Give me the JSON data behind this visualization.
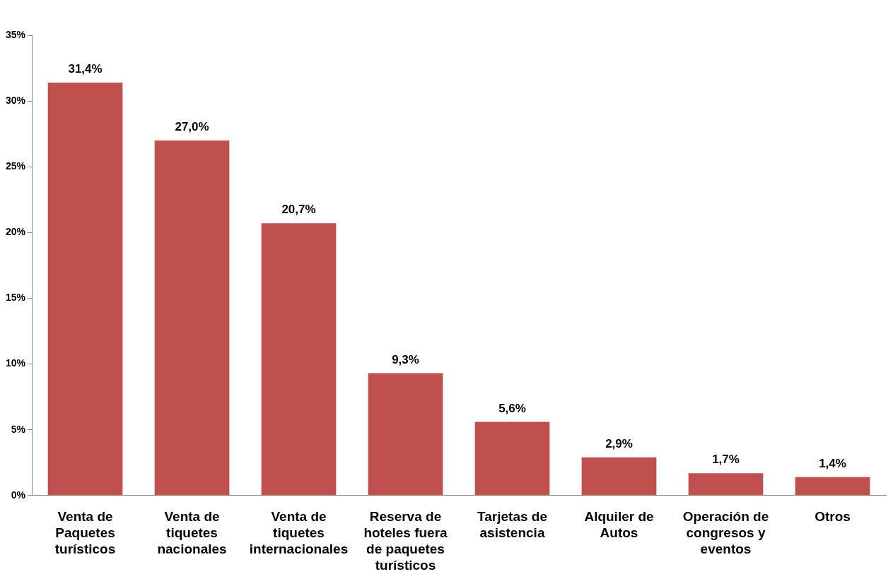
{
  "chart_data": {
    "type": "bar",
    "categories": [
      "Venta de Paquetes turísticos",
      "Venta de tiquetes nacionales",
      "Venta de tiquetes internacionales",
      "Reserva de hoteles fuera de paquetes turísticos",
      "Tarjetas de asistencia",
      "Alquiler de Autos",
      "Operación de congresos y eventos",
      "Otros"
    ],
    "values": [
      31.4,
      27.0,
      20.7,
      9.3,
      5.6,
      2.9,
      1.7,
      1.4
    ],
    "value_labels": [
      "31,4%",
      "27,0%",
      "20,7%",
      "9,3%",
      "5,6%",
      "2,9%",
      "1,7%",
      "1,4%"
    ],
    "color": "#c0504d",
    "ylim": [
      0,
      35
    ],
    "yticks": [
      {
        "value": 0,
        "label": "0%"
      },
      {
        "value": 5,
        "label": "5%"
      },
      {
        "value": 10,
        "label": "10%"
      },
      {
        "value": 15,
        "label": "15%"
      },
      {
        "value": 20,
        "label": "20%"
      },
      {
        "value": 25,
        "label": "25%"
      },
      {
        "value": 30,
        "label": "30%"
      },
      {
        "value": 35,
        "label": "35%"
      }
    ],
    "grid": false,
    "legend": false
  }
}
